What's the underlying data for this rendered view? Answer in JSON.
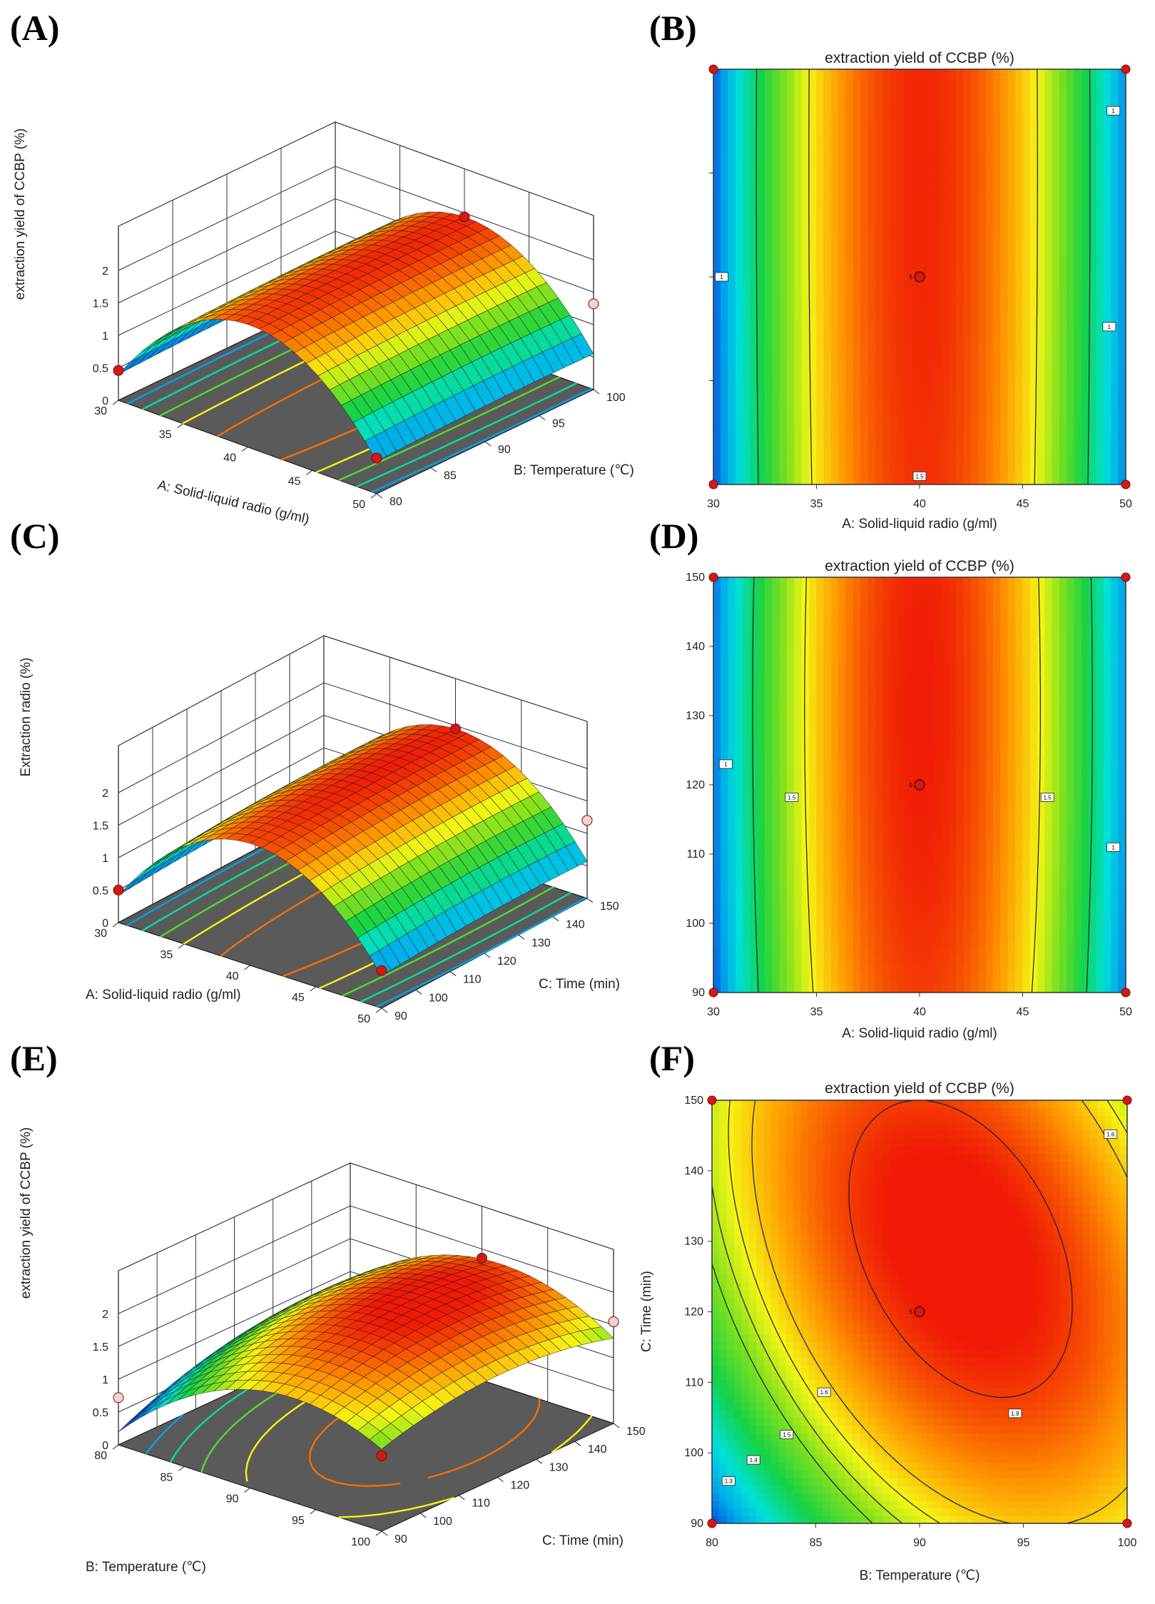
{
  "colors": {
    "background": "#ffffff",
    "floor": "#5a5a5a",
    "grid": "#333333",
    "design_point": "#d11a14",
    "design_point_light": "#f6d2cc"
  },
  "chart_data": [
    {
      "panel": "(A)",
      "type": "surface3d",
      "zlabel": "extraction yield of CCBP (%)",
      "xlabel": "A: Solid-liquid radio (g/ml)",
      "ylabel": "B:  Temperature  (℃)",
      "x_ticks": [
        "30",
        "35",
        "40",
        "45",
        "50"
      ],
      "y_ticks": [
        "80",
        "85",
        "90",
        "95",
        "100"
      ],
      "z_ticks": [
        "0",
        "0.5",
        "1",
        "1.5",
        "2"
      ],
      "xlim": [
        30,
        50
      ],
      "ylim": [
        80,
        100
      ],
      "zlim": [
        0,
        2
      ],
      "model": {
        "f_center": 1.94,
        "f_x_min": 0.45,
        "f_x_max": 0.55,
        "f_y_min": 1.89,
        "f_y_max": 1.94
      },
      "design_points": [
        [
          30,
          80,
          0.46
        ],
        [
          40,
          100,
          1.94
        ],
        [
          50,
          80,
          0.55
        ],
        [
          50,
          100,
          1.32
        ]
      ]
    },
    {
      "panel": "(B)",
      "type": "contour",
      "title": "extraction yield of CCBP (%)",
      "xlabel": "A: Solid-liquid radio (g/ml)",
      "ylabel": "",
      "x_ticks": [
        "30",
        "35",
        "40",
        "45",
        "50"
      ],
      "y_ticks": [
        "",
        "",
        "",
        "",
        ""
      ],
      "xlim": [
        30,
        50
      ],
      "ylim": [
        80,
        100
      ],
      "model": {
        "f_center": 1.94,
        "f_x_min": 0.45,
        "f_x_max": 0.55,
        "f_y_min": 1.92,
        "f_y_max": 1.94
      },
      "contour_levels": [
        1,
        1.5
      ],
      "contour_labels": [
        "1",
        "1",
        "1.5",
        "1"
      ],
      "center_point": [
        40,
        90
      ],
      "center_label": "5",
      "corner_points": [
        [
          30,
          80
        ],
        [
          50,
          80
        ],
        [
          30,
          100
        ],
        [
          50,
          100
        ]
      ]
    },
    {
      "panel": "(C)",
      "type": "surface3d",
      "zlabel": "Extraction radio (%)",
      "xlabel": "A: Solid-liquid radio (g/ml)",
      "ylabel": "C: Time (min)",
      "x_ticks": [
        "30",
        "35",
        "40",
        "45",
        "50"
      ],
      "y_ticks": [
        "90",
        "100",
        "110",
        "120",
        "130",
        "140",
        "150"
      ],
      "z_ticks": [
        "0",
        "0.5",
        "1",
        "1.5",
        "2"
      ],
      "xlim": [
        30,
        50
      ],
      "ylim": [
        90,
        150
      ],
      "zlim": [
        0,
        2
      ],
      "model": {
        "f_center": 1.96,
        "f_x_min": 0.5,
        "f_x_max": 0.58,
        "f_y_min": 1.88,
        "f_y_max": 1.95
      },
      "design_points": [
        [
          30,
          90,
          0.5
        ],
        [
          40,
          150,
          1.95
        ],
        [
          50,
          90,
          0.58
        ],
        [
          50,
          150,
          1.2
        ]
      ]
    },
    {
      "panel": "(D)",
      "type": "contour",
      "title": "extraction yield of CCBP (%)",
      "xlabel": "A: Solid-liquid radio (g/ml)",
      "ylabel": "",
      "x_ticks": [
        "30",
        "35",
        "40",
        "45",
        "50"
      ],
      "y_ticks": [
        "90",
        "100",
        "110",
        "120",
        "130",
        "140",
        "150"
      ],
      "xlim": [
        30,
        50
      ],
      "ylim": [
        90,
        150
      ],
      "model": {
        "f_center": 1.96,
        "f_x_min": 0.5,
        "f_x_max": 0.58,
        "f_y_min": 1.9,
        "f_y_max": 1.95
      },
      "contour_levels": [
        1,
        1.5
      ],
      "contour_labels": [
        "1",
        "1.5",
        "1.5",
        "1"
      ],
      "center_point": [
        40,
        120
      ],
      "center_label": "5",
      "corner_points": [
        [
          30,
          90
        ],
        [
          50,
          90
        ],
        [
          30,
          150
        ],
        [
          50,
          150
        ]
      ]
    },
    {
      "panel": "(E)",
      "type": "surface3d",
      "zlabel": "extraction yield of CCBP (%)",
      "xlabel": "B:  Temperature  (℃)",
      "ylabel": "C: Time (min)",
      "x_ticks": [
        "80",
        "85",
        "90",
        "95",
        "100"
      ],
      "y_ticks": [
        "90",
        "100",
        "110",
        "120",
        "130",
        "140",
        "150"
      ],
      "z_ticks": [
        "0",
        "0.5",
        "1",
        "1.5",
        "2"
      ],
      "xlim": [
        80,
        100
      ],
      "ylim": [
        90,
        150
      ],
      "zlim": [
        0,
        2
      ],
      "model": {
        "f_center": 1.95,
        "f_x_min": 0.8,
        "f_x_max": 1.55,
        "f_y_min": 1.5,
        "f_y_max": 1.85,
        "xy_coupling": -0.15
      },
      "design_points": [
        [
          80,
          90,
          0.72
        ],
        [
          90,
          150,
          1.86
        ],
        [
          100,
          90,
          1.15
        ],
        [
          100,
          150,
          1.55
        ]
      ]
    },
    {
      "panel": "(F)",
      "type": "contour",
      "title": "extraction yield of CCBP (%)",
      "xlabel": "B:  Temperature  (℃)",
      "ylabel": "C: Time (min)",
      "x_ticks": [
        "80",
        "85",
        "90",
        "95",
        "100"
      ],
      "y_ticks": [
        "90",
        "100",
        "110",
        "120",
        "130",
        "140",
        "150"
      ],
      "xlim": [
        80,
        100
      ],
      "ylim": [
        90,
        150
      ],
      "model": {
        "f_center": 1.96,
        "f_x_min": 1.2,
        "f_x_max": 1.75,
        "f_y_min": 1.45,
        "f_y_max": 1.9,
        "xy_coupling": -0.28
      },
      "contour_levels": [
        1.3,
        1.4,
        1.5,
        1.6,
        1.9
      ],
      "contour_labels": [
        "1.3",
        "1.4",
        "1.5",
        "1.6",
        "1.9",
        "1.6"
      ],
      "center_point": [
        90,
        120
      ],
      "center_label": "5",
      "corner_points": [
        [
          80,
          90
        ],
        [
          100,
          90
        ],
        [
          80,
          150
        ],
        [
          100,
          150
        ]
      ]
    }
  ]
}
